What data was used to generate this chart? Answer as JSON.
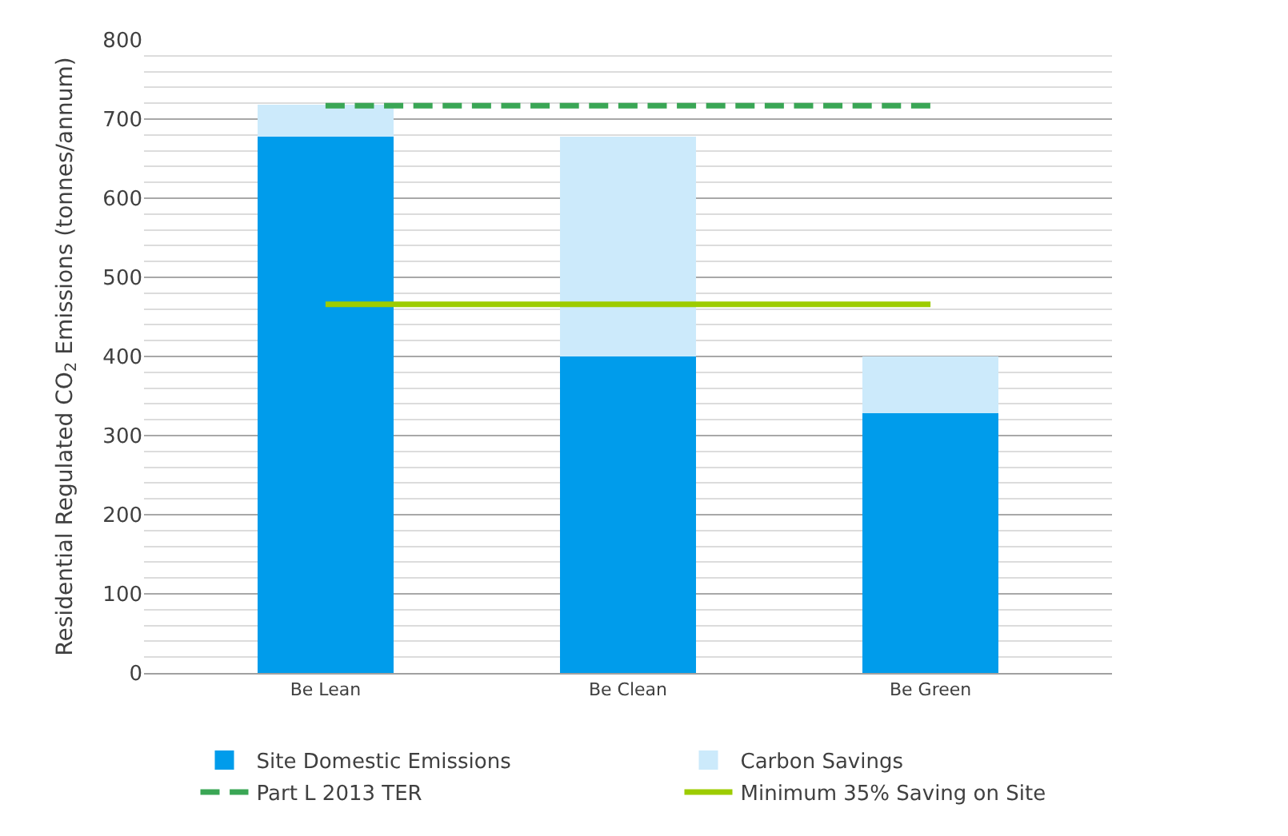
{
  "chart_data": {
    "type": "bar",
    "stacked": true,
    "ylabel": "Residential Regulated CO$_{2}$ Emissions (tonnes/annum)",
    "categories": [
      "Be Lean",
      "Be Clean",
      "Be Green"
    ],
    "series": [
      {
        "name": "Site Domestic Emissions",
        "color": "#009ceb",
        "values": [
          678,
          400,
          328
        ]
      },
      {
        "name": "Carbon Savings",
        "color": "#cceafb",
        "values": [
          40,
          278,
          72
        ]
      },
      {
        "name": "Part L 2013 TER",
        "type": "line",
        "color": "#3aa655",
        "line_style": "dashed",
        "values": [
          717,
          717,
          717
        ]
      },
      {
        "name": "Minimum 35% Saving on Site",
        "type": "line",
        "color": "#9dcc00",
        "line_style": "solid",
        "values": [
          466,
          466,
          466
        ]
      }
    ],
    "ylim": [
      0,
      800
    ],
    "yticks": [
      0,
      100,
      200,
      300,
      400,
      500,
      600,
      700,
      800
    ],
    "grid": "y",
    "legend": "bottom"
  }
}
